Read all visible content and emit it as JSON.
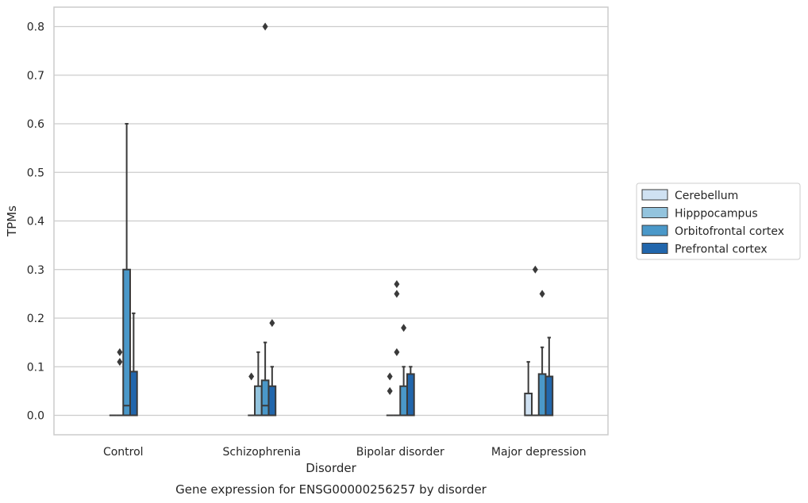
{
  "chart_data": {
    "type": "boxplot",
    "caption": "Gene expression for ENSG00000256257 by disorder",
    "xlabel": "Disorder",
    "ylabel": "TPMs",
    "ylim": [
      -0.04,
      0.84
    ],
    "yticks": [
      0.0,
      0.1,
      0.2,
      0.3,
      0.4,
      0.5,
      0.6,
      0.7,
      0.8
    ],
    "ytick_labels": [
      "0.0",
      "0.1",
      "0.2",
      "0.3",
      "0.4",
      "0.5",
      "0.6",
      "0.7",
      "0.8"
    ],
    "grid": true,
    "legend_position": "right",
    "categories": [
      "Control",
      "Schizophrenia",
      "Bipolar disorder",
      "Major depression"
    ],
    "series": [
      {
        "name": "Cerebellum",
        "color": "#cfe1f2",
        "boxes": [
          {
            "q1": 0.0,
            "median": 0.0,
            "q3": 0.0,
            "whisker_low": 0.0,
            "whisker_high": 0.0,
            "outliers": []
          },
          {
            "q1": 0.0,
            "median": 0.0,
            "q3": 0.0,
            "whisker_low": 0.0,
            "whisker_high": 0.0,
            "outliers": [
              0.08
            ]
          },
          {
            "q1": 0.0,
            "median": 0.0,
            "q3": 0.0,
            "whisker_low": 0.0,
            "whisker_high": 0.0,
            "outliers": [
              0.05,
              0.08
            ]
          },
          {
            "q1": 0.0,
            "median": 0.0,
            "q3": 0.045,
            "whisker_low": 0.0,
            "whisker_high": 0.11,
            "outliers": []
          }
        ]
      },
      {
        "name": "Hipppocampus",
        "color": "#93c4de",
        "boxes": [
          {
            "q1": 0.0,
            "median": 0.0,
            "q3": 0.0,
            "whisker_low": 0.0,
            "whisker_high": 0.0,
            "outliers": [
              0.11,
              0.13
            ]
          },
          {
            "q1": 0.0,
            "median": 0.0,
            "q3": 0.06,
            "whisker_low": 0.0,
            "whisker_high": 0.13,
            "outliers": []
          },
          {
            "q1": 0.0,
            "median": 0.0,
            "q3": 0.0,
            "whisker_low": 0.0,
            "whisker_high": 0.0,
            "outliers": [
              0.13,
              0.25,
              0.27
            ]
          },
          {
            "q1": 0.0,
            "median": 0.0,
            "q3": 0.0,
            "whisker_low": 0.0,
            "whisker_high": 0.0,
            "outliers": [
              0.3
            ]
          }
        ]
      },
      {
        "name": "Orbitofrontal cortex",
        "color": "#4a98c9",
        "boxes": [
          {
            "q1": 0.0,
            "median": 0.02,
            "q3": 0.3,
            "whisker_low": 0.0,
            "whisker_high": 0.6,
            "outliers": []
          },
          {
            "q1": 0.0,
            "median": 0.02,
            "q3": 0.072,
            "whisker_low": 0.0,
            "whisker_high": 0.15,
            "outliers": [
              0.8
            ]
          },
          {
            "q1": 0.0,
            "median": 0.0,
            "q3": 0.06,
            "whisker_low": 0.0,
            "whisker_high": 0.1,
            "outliers": [
              0.18
            ]
          },
          {
            "q1": 0.0,
            "median": 0.0,
            "q3": 0.085,
            "whisker_low": 0.0,
            "whisker_high": 0.14,
            "outliers": [
              0.25
            ]
          }
        ]
      },
      {
        "name": "Prefrontal cortex",
        "color": "#2166ac",
        "boxes": [
          {
            "q1": 0.0,
            "median": 0.0,
            "q3": 0.09,
            "whisker_low": 0.0,
            "whisker_high": 0.21,
            "outliers": []
          },
          {
            "q1": 0.0,
            "median": 0.0,
            "q3": 0.06,
            "whisker_low": 0.0,
            "whisker_high": 0.1,
            "outliers": [
              0.19
            ]
          },
          {
            "q1": 0.0,
            "median": 0.0,
            "q3": 0.085,
            "whisker_low": 0.0,
            "whisker_high": 0.1,
            "outliers": []
          },
          {
            "q1": 0.0,
            "median": 0.0,
            "q3": 0.08,
            "whisker_low": 0.0,
            "whisker_high": 0.16,
            "outliers": []
          }
        ]
      }
    ]
  }
}
